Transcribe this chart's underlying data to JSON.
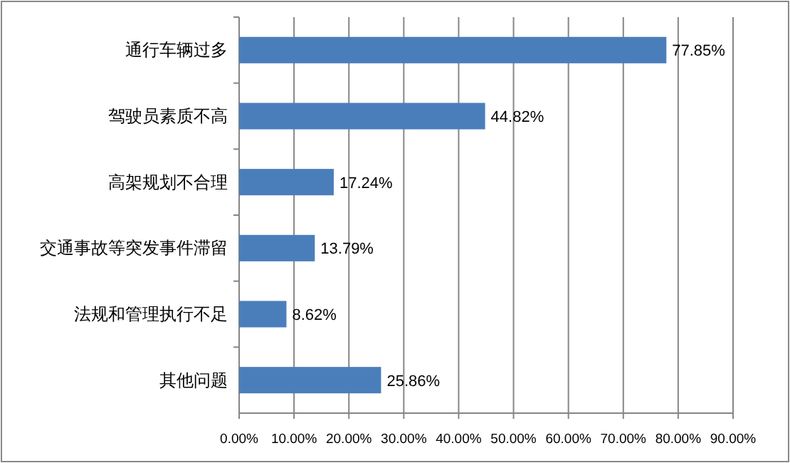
{
  "chart_data": {
    "type": "bar",
    "orientation": "horizontal",
    "categories": [
      "通行车辆过多",
      "驾驶员素质不高",
      "高架规划不合理",
      "交通事故等突发事件滞留",
      "法规和管理执行不足",
      "其他问题"
    ],
    "values": [
      77.85,
      44.82,
      17.24,
      13.79,
      8.62,
      25.86
    ],
    "value_labels": [
      "77.85%",
      "44.82%",
      "17.24%",
      "13.79%",
      "8.62%",
      "25.86%"
    ],
    "color": "#4a7ebb",
    "xlim": [
      0,
      90
    ],
    "xticks": [
      {
        "value": 0,
        "label": "0.00%"
      },
      {
        "value": 10,
        "label": "10.00%"
      },
      {
        "value": 20,
        "label": "20.00%"
      },
      {
        "value": 30,
        "label": "30.00%"
      },
      {
        "value": 40,
        "label": "40.00%"
      },
      {
        "value": 50,
        "label": "50.00%"
      },
      {
        "value": 60,
        "label": "60.00%"
      },
      {
        "value": 70,
        "label": "70.00%"
      },
      {
        "value": 80,
        "label": "80.00%"
      },
      {
        "value": 90,
        "label": "90.00%"
      }
    ],
    "grid": "x"
  }
}
